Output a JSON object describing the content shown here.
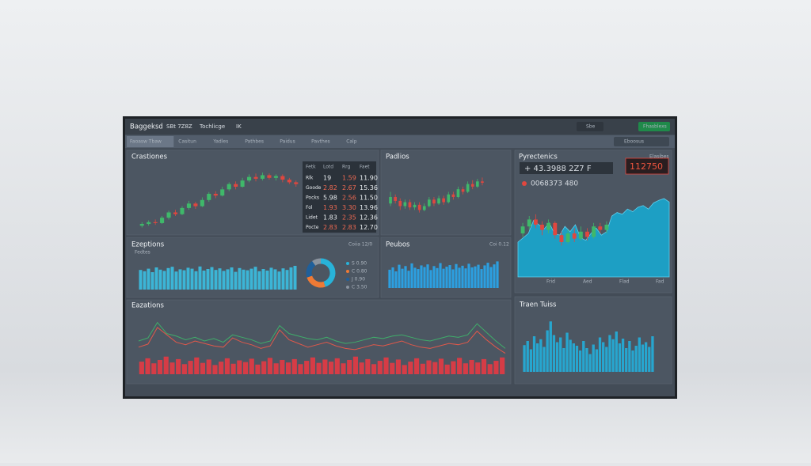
{
  "topbar": {
    "brand": "Baggeksd",
    "ticker": "SBt 7Z8Z",
    "menu": "Tochlicge",
    "code": "IK",
    "search": "Sbe",
    "button": "Fhasblexs"
  },
  "tabs": [
    "Faoasw Tbaw",
    "Casitun",
    "Yadles",
    "Pathbes",
    "Paidus",
    "Pavthes",
    "Calp"
  ],
  "right_tab": "Eboosus",
  "candles_a": {
    "title": "Crastiones",
    "ylim": [
      1250,
      1400
    ],
    "up_color": "#3fb86a",
    "down_color": "#e0473f",
    "candles": [
      [
        1262,
        1266,
        1270,
        1258
      ],
      [
        1266,
        1270,
        1274,
        1262
      ],
      [
        1270,
        1268,
        1276,
        1264
      ],
      [
        1268,
        1280,
        1284,
        1266
      ],
      [
        1280,
        1292,
        1296,
        1276
      ],
      [
        1292,
        1288,
        1298,
        1284
      ],
      [
        1288,
        1302,
        1306,
        1286
      ],
      [
        1302,
        1312,
        1318,
        1298
      ],
      [
        1312,
        1306,
        1316,
        1300
      ],
      [
        1306,
        1320,
        1326,
        1304
      ],
      [
        1320,
        1334,
        1338,
        1316
      ],
      [
        1334,
        1330,
        1340,
        1324
      ],
      [
        1330,
        1344,
        1350,
        1328
      ],
      [
        1344,
        1356,
        1360,
        1340
      ],
      [
        1356,
        1350,
        1362,
        1344
      ],
      [
        1350,
        1364,
        1370,
        1348
      ],
      [
        1364,
        1372,
        1378,
        1360
      ],
      [
        1372,
        1368,
        1380,
        1362
      ],
      [
        1368,
        1376,
        1382,
        1364
      ],
      [
        1376,
        1370,
        1380,
        1366
      ],
      [
        1370,
        1374,
        1378,
        1364
      ],
      [
        1374,
        1366,
        1378,
        1360
      ],
      [
        1366,
        1360,
        1370,
        1356
      ],
      [
        1360,
        1356,
        1364,
        1350
      ]
    ]
  },
  "table": {
    "header": [
      "Fetk",
      "Lotd",
      "Rrg",
      "Faet"
    ],
    "rows": [
      [
        "Rlk",
        "19",
        "1.59",
        "11.90"
      ],
      [
        "Goode",
        "2.82",
        "2.67",
        "15.36"
      ],
      [
        "Pocks",
        "5.98",
        "2.56",
        "11.50"
      ],
      [
        "Fol",
        "1.93",
        "3.30",
        "13.96"
      ],
      [
        "Lidet",
        "1.83",
        "2.35",
        "12.36"
      ],
      [
        "Pocte",
        "2.83",
        "2.83",
        "12.70"
      ]
    ]
  },
  "candles_b": {
    "title": "Padlios",
    "ylim": [
      0,
      100
    ],
    "up_color": "#3fb86a",
    "down_color": "#e0473f",
    "candles": [
      [
        40,
        50,
        58,
        36
      ],
      [
        50,
        44,
        54,
        40
      ],
      [
        44,
        36,
        48,
        30
      ],
      [
        36,
        42,
        46,
        32
      ],
      [
        42,
        34,
        46,
        30
      ],
      [
        34,
        38,
        42,
        30
      ],
      [
        38,
        30,
        42,
        26
      ],
      [
        30,
        36,
        40,
        28
      ],
      [
        36,
        46,
        50,
        34
      ],
      [
        46,
        40,
        50,
        36
      ],
      [
        40,
        48,
        52,
        38
      ],
      [
        48,
        42,
        52,
        38
      ],
      [
        42,
        54,
        58,
        40
      ],
      [
        54,
        50,
        58,
        46
      ],
      [
        50,
        62,
        66,
        48
      ],
      [
        62,
        58,
        66,
        54
      ],
      [
        58,
        70,
        74,
        56
      ],
      [
        70,
        66,
        76,
        62
      ],
      [
        66,
        74,
        78,
        64
      ],
      [
        74,
        72,
        80,
        68
      ]
    ]
  },
  "spectrum": {
    "title": "Pyrectenics",
    "tag": "Elasibes",
    "main": "+ 43.3988 2Z7 F",
    "badge": "112750",
    "sub": "0068373 480",
    "x_labels": [
      "Frid",
      "Aed",
      "Flad",
      "Fad"
    ],
    "ylim": [
      0,
      100
    ],
    "area_color": "#1d9fc4",
    "area": [
      40,
      45,
      50,
      65,
      60,
      55,
      62,
      50,
      48,
      58,
      52,
      60,
      45,
      42,
      50,
      56,
      48,
      52,
      70,
      74,
      72,
      78,
      75,
      80,
      82,
      78,
      85,
      88,
      90,
      86
    ],
    "up_color": "#3fb86a",
    "down_color": "#e0473f",
    "candles": [
      [
        50,
        58,
        62,
        46
      ],
      [
        58,
        66,
        70,
        54
      ],
      [
        66,
        60,
        72,
        56
      ],
      [
        60,
        54,
        64,
        48
      ],
      [
        54,
        62,
        66,
        50
      ],
      [
        62,
        48,
        64,
        44
      ],
      [
        48,
        40,
        52,
        36
      ],
      [
        40,
        50,
        54,
        38
      ],
      [
        50,
        44,
        56,
        40
      ],
      [
        44,
        52,
        58,
        42
      ],
      [
        52,
        46,
        56,
        42
      ],
      [
        46,
        58,
        62,
        44
      ],
      [
        58,
        54,
        62,
        50
      ],
      [
        54,
        60,
        64,
        50
      ]
    ]
  },
  "exceptions": {
    "title": "Ezeptions",
    "subtitle": "Fedtes",
    "tag": "Coiia 12/0",
    "ylim": [
      0,
      100
    ],
    "color": "#3cb5d6",
    "values": [
      62,
      58,
      66,
      55,
      70,
      63,
      59,
      68,
      72,
      57,
      64,
      61,
      69,
      66,
      58,
      73,
      60,
      65,
      71,
      62,
      67,
      59,
      64,
      70,
      56,
      68,
      63,
      61,
      66,
      72,
      58,
      65,
      60,
      69,
      64,
      57,
      67,
      62,
      70,
      75
    ],
    "donut": [
      45,
      25,
      20,
      10
    ],
    "donut_colors": [
      "#28b3d9",
      "#ef7a35",
      "#1f5f9a",
      "#8a939e"
    ],
    "legend": [
      "S 0.90",
      "C 0.80",
      "J 0.90",
      "C 3.50"
    ]
  },
  "peubos": {
    "title": "Peubos",
    "tag": "Coi 0.12",
    "ylim": [
      0,
      100
    ],
    "color": "#2c9fe0",
    "values": [
      55,
      62,
      50,
      70,
      58,
      66,
      52,
      74,
      61,
      57,
      68,
      63,
      71,
      54,
      66,
      60,
      75,
      58,
      64,
      69,
      56,
      72,
      61,
      67,
      59,
      73,
      62,
      65,
      70,
      57,
      68,
      76,
      63,
      71,
      80
    ]
  },
  "eazations": {
    "title": "Eazations",
    "ylim": [
      0,
      100
    ],
    "lines": [
      {
        "color": "#e0584a",
        "values": [
          40,
          45,
          72,
          60,
          48,
          44,
          50,
          46,
          42,
          40,
          55,
          48,
          44,
          38,
          42,
          68,
          52,
          46,
          40,
          44,
          48,
          42,
          38,
          36,
          40,
          44,
          42,
          46,
          50,
          44,
          40,
          38,
          42,
          46,
          44,
          48,
          66,
          52,
          40,
          30
        ]
      },
      {
        "color": "#3fae6a",
        "values": [
          50,
          55,
          80,
          62,
          58,
          52,
          56,
          50,
          54,
          48,
          60,
          56,
          52,
          46,
          50,
          75,
          62,
          58,
          54,
          52,
          56,
          50,
          46,
          48,
          52,
          56,
          54,
          58,
          60,
          56,
          52,
          50,
          54,
          58,
          56,
          60,
          78,
          64,
          50,
          38
        ]
      }
    ],
    "bar_color": "#d63c46",
    "bars": [
      30,
      38,
      26,
      34,
      42,
      28,
      36,
      24,
      32,
      40,
      27,
      35,
      22,
      30,
      38,
      25,
      33,
      29,
      37,
      23,
      31,
      39,
      26,
      34,
      28,
      36,
      24,
      32,
      40,
      27,
      35,
      30,
      38,
      26,
      34,
      42,
      28,
      36,
      24,
      32,
      40,
      27,
      35,
      22,
      30,
      38,
      25,
      33,
      29,
      37,
      23,
      31,
      39,
      26,
      34,
      28,
      36,
      24,
      32,
      40
    ]
  },
  "trends": {
    "title": "Traen Tuiss",
    "ylim": [
      0,
      100
    ],
    "color": "#27a6cf",
    "values": [
      45,
      52,
      38,
      60,
      48,
      55,
      42,
      70,
      85,
      62,
      50,
      58,
      40,
      66,
      54,
      48,
      44,
      36,
      52,
      40,
      30,
      46,
      38,
      58,
      50,
      42,
      62,
      55,
      68,
      48,
      56,
      40,
      52,
      36,
      44,
      58,
      46,
      50,
      42,
      60
    ]
  }
}
